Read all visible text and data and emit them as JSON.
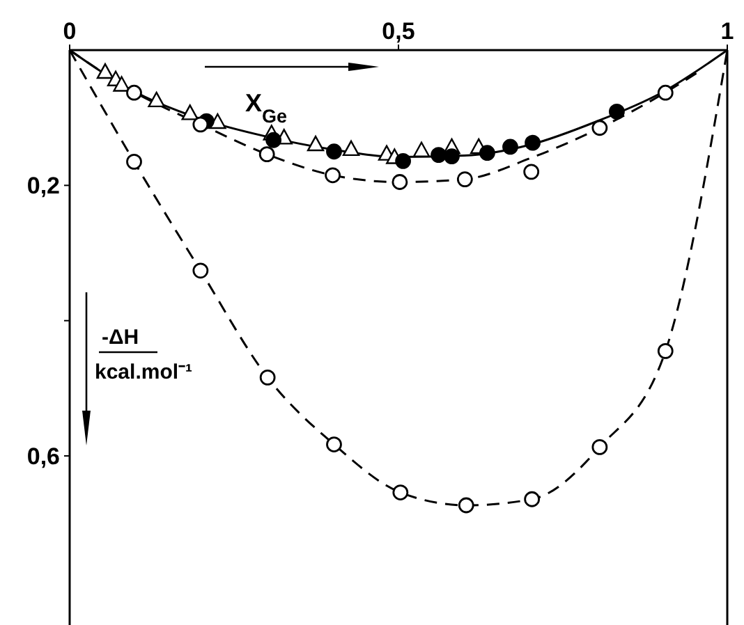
{
  "chart_data": {
    "type": "scatter",
    "xlabel": "X$_{Ge}$",
    "ylabel": "-ΔH kcal.mol⁻¹",
    "xlim": [
      0,
      1
    ],
    "xticks": [
      0,
      {
        "value": 0.5,
        "label": "0,5"
      },
      1
    ],
    "ylim": [
      0.85,
      0
    ],
    "yticks": [
      {
        "value": 0.2,
        "label": "0,2"
      },
      {
        "value": 0.4,
        "label": null
      },
      {
        "value": 0.6,
        "label": "0,6"
      }
    ],
    "grid": false,
    "series": [
      {
        "type": "scatter",
        "marker": "triangle",
        "color": "#ffffff",
        "x": [
          0.054,
          0.07,
          0.079,
          0.132,
          0.183,
          0.225,
          0.307,
          0.326,
          0.374,
          0.428,
          0.482,
          0.494,
          0.535,
          0.581,
          0.622
        ],
        "values": [
          0.033,
          0.044,
          0.052,
          0.075,
          0.094,
          0.107,
          0.124,
          0.13,
          0.14,
          0.147,
          0.154,
          0.159,
          0.149,
          0.144,
          0.144
        ]
      },
      {
        "type": "scatter",
        "marker": "circle",
        "color": "#000000",
        "x": [
          0.208,
          0.31,
          0.402,
          0.507,
          0.561,
          0.581,
          0.635,
          0.67,
          0.704,
          0.832
        ],
        "values": [
          0.105,
          0.133,
          0.15,
          0.164,
          0.155,
          0.157,
          0.152,
          0.143,
          0.137,
          0.091
        ]
      },
      {
        "type": "scatter",
        "marker": "circle",
        "color": "#ffffff",
        "x": [
          0.098,
          0.199,
          0.3,
          0.4,
          0.502,
          0.601,
          0.702,
          0.806,
          0.906
        ],
        "values": [
          0.063,
          0.11,
          0.154,
          0.185,
          0.195,
          0.191,
          0.18,
          0.115,
          0.063
        ]
      },
      {
        "type": "scatter",
        "marker": "circle",
        "color": "#ffffff",
        "x": [
          0.098,
          0.199,
          0.301,
          0.402,
          0.503,
          0.603,
          0.703,
          0.806,
          0.906
        ],
        "values": [
          0.165,
          0.326,
          0.484,
          0.583,
          0.654,
          0.673,
          0.664,
          0.587,
          0.445
        ]
      },
      {
        "type": "line",
        "line_style": "solid",
        "color": "#000000",
        "x": [
          0,
          0.1,
          0.2,
          0.3,
          0.4,
          0.5,
          0.6,
          0.7,
          0.8,
          0.9,
          1
        ],
        "values": [
          0,
          0.062,
          0.102,
          0.128,
          0.147,
          0.158,
          0.156,
          0.14,
          0.106,
          0.063,
          0
        ]
      },
      {
        "type": "line",
        "line_style": "dashed",
        "color": "#000000",
        "x": [
          0,
          0.1,
          0.2,
          0.3,
          0.4,
          0.5,
          0.6,
          0.7,
          0.8,
          0.9,
          0.96
        ],
        "values": [
          0,
          0.063,
          0.11,
          0.154,
          0.185,
          0.195,
          0.191,
          0.16,
          0.118,
          0.066,
          0.03
        ]
      },
      {
        "type": "line",
        "line_style": "dashed",
        "color": "#000000",
        "x": [
          0,
          0.098,
          0.199,
          0.301,
          0.402,
          0.503,
          0.603,
          0.703,
          0.806,
          0.906,
          1
        ],
        "values": [
          0,
          0.165,
          0.326,
          0.484,
          0.583,
          0.654,
          0.673,
          0.664,
          0.587,
          0.445,
          0
        ]
      }
    ]
  }
}
